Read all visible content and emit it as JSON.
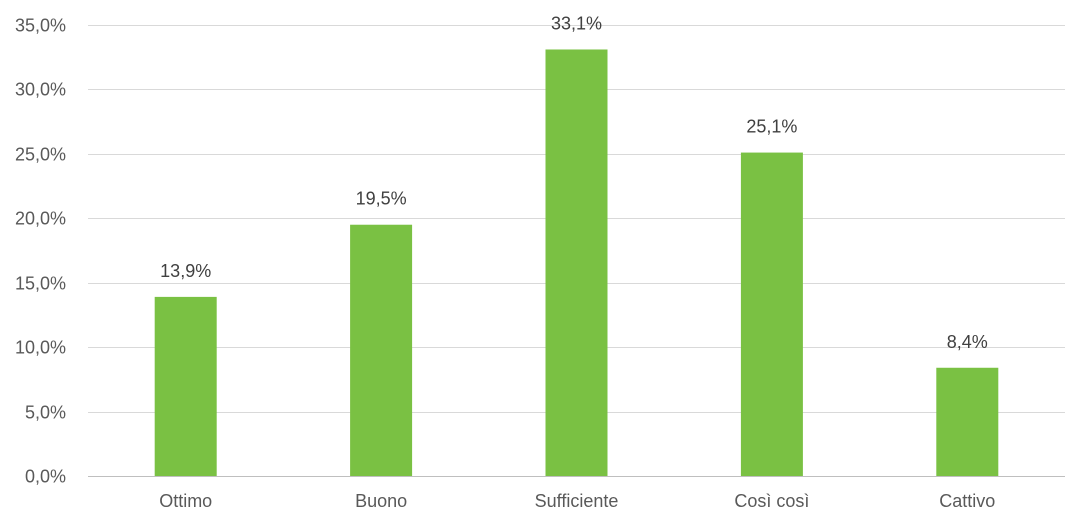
{
  "chart_data": {
    "type": "bar",
    "title": "",
    "xlabel": "",
    "ylabel": "",
    "categories": [
      "Ottimo",
      "Buono",
      "Sufficiente",
      "Così così",
      "Cattivo"
    ],
    "values": [
      13.9,
      19.5,
      33.1,
      25.1,
      8.4
    ],
    "value_labels": [
      "13,9%",
      "19,5%",
      "33,1%",
      "25,1%",
      "8,4%"
    ],
    "ylim": [
      0,
      35
    ],
    "yticks": [
      0,
      5,
      10,
      15,
      20,
      25,
      30,
      35
    ],
    "ytick_labels": [
      "0,0%",
      "5,0%",
      "10,0%",
      "15,0%",
      "20,0%",
      "25,0%",
      "30,0%",
      "35,0%"
    ],
    "grid": true,
    "legend": "none",
    "bar_color": "#7ac143",
    "grid_color": "#d9d9d9"
  }
}
